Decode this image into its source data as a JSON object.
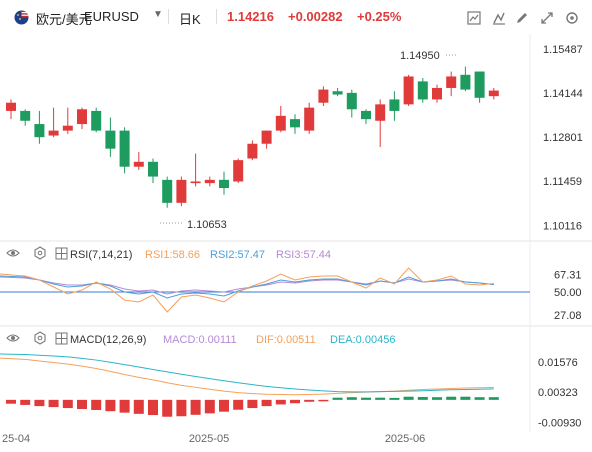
{
  "header": {
    "symbol_name": "欧元/美元",
    "symbol_code": "EURUSD",
    "timeframe": "日K",
    "price": "1.14216",
    "change": "+0.00282",
    "change_pct": "+0.25%",
    "icons": [
      "us-eu-flag-icon",
      "dropdown-caret-icon",
      "crosshair-icon",
      "indicator-icon",
      "draw-icon",
      "settings-icon",
      "fullscreen-icon",
      "close-icon"
    ]
  },
  "colors": {
    "up": "#e03a3a",
    "down": "#1e9b5f",
    "rsi1": "#f5a15a",
    "rsi2": "#4aa0d9",
    "rsi3": "#b48ad6",
    "macd_line": "#f5a15a",
    "dea_line": "#29b6c8",
    "ref_line": "#3a7bd5"
  },
  "chart_data": [
    {
      "type": "candlestick",
      "name": "EURUSD daily",
      "y_ticks": [
        "1.15487",
        "1.14144",
        "1.12801",
        "1.11459",
        "1.10116"
      ],
      "ylim": [
        1.0985,
        1.157
      ],
      "high_label": "1.14950",
      "low_label": "1.10653",
      "candles": [
        {
          "o": 1.136,
          "h": 1.1395,
          "l": 1.1335,
          "c": 1.1385
        },
        {
          "o": 1.136,
          "h": 1.1365,
          "l": 1.1315,
          "c": 1.133
        },
        {
          "o": 1.132,
          "h": 1.136,
          "l": 1.126,
          "c": 1.128
        },
        {
          "o": 1.1285,
          "h": 1.137,
          "l": 1.128,
          "c": 1.13
        },
        {
          "o": 1.13,
          "h": 1.137,
          "l": 1.129,
          "c": 1.1315
        },
        {
          "o": 1.132,
          "h": 1.137,
          "l": 1.1305,
          "c": 1.1365
        },
        {
          "o": 1.136,
          "h": 1.137,
          "l": 1.1295,
          "c": 1.13
        },
        {
          "o": 1.13,
          "h": 1.134,
          "l": 1.122,
          "c": 1.1245
        },
        {
          "o": 1.13,
          "h": 1.131,
          "l": 1.117,
          "c": 1.119
        },
        {
          "o": 1.119,
          "h": 1.1235,
          "l": 1.118,
          "c": 1.1205
        },
        {
          "o": 1.1205,
          "h": 1.1215,
          "l": 1.114,
          "c": 1.116
        },
        {
          "o": 1.115,
          "h": 1.116,
          "l": 1.1065,
          "c": 1.108
        },
        {
          "o": 1.108,
          "h": 1.116,
          "l": 1.107,
          "c": 1.115
        },
        {
          "o": 1.114,
          "h": 1.123,
          "l": 1.113,
          "c": 1.1145
        },
        {
          "o": 1.114,
          "h": 1.116,
          "l": 1.113,
          "c": 1.115
        },
        {
          "o": 1.115,
          "h": 1.1175,
          "l": 1.1105,
          "c": 1.1125
        },
        {
          "o": 1.1145,
          "h": 1.1215,
          "l": 1.114,
          "c": 1.121
        },
        {
          "o": 1.1215,
          "h": 1.127,
          "l": 1.121,
          "c": 1.126
        },
        {
          "o": 1.126,
          "h": 1.13,
          "l": 1.1245,
          "c": 1.13
        },
        {
          "o": 1.13,
          "h": 1.1375,
          "l": 1.1295,
          "c": 1.1345
        },
        {
          "o": 1.1335,
          "h": 1.135,
          "l": 1.129,
          "c": 1.131
        },
        {
          "o": 1.13,
          "h": 1.1385,
          "l": 1.129,
          "c": 1.137
        },
        {
          "o": 1.1385,
          "h": 1.1435,
          "l": 1.1375,
          "c": 1.1425
        },
        {
          "o": 1.142,
          "h": 1.143,
          "l": 1.1405,
          "c": 1.141
        },
        {
          "o": 1.1415,
          "h": 1.1425,
          "l": 1.134,
          "c": 1.1365
        },
        {
          "o": 1.136,
          "h": 1.1365,
          "l": 1.132,
          "c": 1.1335
        },
        {
          "o": 1.133,
          "h": 1.1395,
          "l": 1.125,
          "c": 1.138
        },
        {
          "o": 1.1395,
          "h": 1.142,
          "l": 1.133,
          "c": 1.136
        },
        {
          "o": 1.138,
          "h": 1.147,
          "l": 1.1375,
          "c": 1.1465
        },
        {
          "o": 1.145,
          "h": 1.146,
          "l": 1.1385,
          "c": 1.1395
        },
        {
          "o": 1.1395,
          "h": 1.144,
          "l": 1.1385,
          "c": 1.143
        },
        {
          "o": 1.143,
          "h": 1.148,
          "l": 1.1405,
          "c": 1.1465
        },
        {
          "o": 1.147,
          "h": 1.1495,
          "l": 1.142,
          "c": 1.1425
        },
        {
          "o": 1.148,
          "h": 1.148,
          "l": 1.1385,
          "c": 1.14
        },
        {
          "o": 1.1405,
          "h": 1.143,
          "l": 1.1395,
          "c": 1.1422
        }
      ]
    },
    {
      "type": "line",
      "name": "RSI",
      "label": "RSI(7,14,21)",
      "legend": [
        "RSI1:58.66",
        "RSI2:57.47",
        "RSI3:57.44"
      ],
      "y_ticks": [
        "67.31",
        "50.00",
        "27.08"
      ],
      "ylim": [
        20,
        80
      ],
      "ref_value": 50,
      "series": [
        {
          "name": "RSI1",
          "values": [
            68,
            66,
            62,
            55,
            48,
            52,
            60,
            53,
            42,
            40,
            47,
            30,
            45,
            47,
            44,
            40,
            50,
            56,
            61,
            68,
            62,
            65,
            66,
            66,
            60,
            54,
            64,
            58,
            74,
            60,
            62,
            66,
            58,
            57,
            58.66
          ]
        },
        {
          "name": "RSI2",
          "values": [
            66,
            65,
            62,
            58,
            55,
            56,
            59,
            56,
            50,
            48,
            50,
            44,
            48,
            49,
            48,
            46,
            51,
            55,
            58,
            62,
            60,
            62,
            63,
            63,
            60,
            57,
            61,
            59,
            65,
            60,
            61,
            63,
            60,
            59,
            57.47
          ]
        },
        {
          "name": "RSI3",
          "values": [
            65,
            64,
            62,
            59,
            57,
            57,
            59,
            57,
            53,
            51,
            52,
            48,
            51,
            52,
            51,
            50,
            53,
            55,
            57,
            60,
            59,
            61,
            62,
            62,
            60,
            58,
            61,
            59,
            63,
            60,
            61,
            62,
            60,
            59,
            57.44
          ]
        }
      ]
    },
    {
      "type": "bar",
      "name": "MACD",
      "label": "MACD(12,26,9)",
      "legend": [
        "MACD:0.00111",
        "DIF:0.00511",
        "DEA:0.00456"
      ],
      "y_ticks": [
        "0.01576",
        "0.00323",
        "-0.00930"
      ],
      "ylim": [
        -0.0125,
        0.0215
      ],
      "x_ticks": [
        "25-04",
        "2025-05",
        "2025-06"
      ],
      "series": [
        {
          "name": "MACD",
          "values": [
            -0.0016,
            -0.0021,
            -0.0026,
            -0.003,
            -0.0034,
            -0.0038,
            -0.0042,
            -0.0047,
            -0.0053,
            -0.0058,
            -0.0063,
            -0.007,
            -0.0068,
            -0.0062,
            -0.0056,
            -0.0049,
            -0.0041,
            -0.0034,
            -0.0026,
            -0.0019,
            -0.0014,
            -0.0008,
            -0.0002,
            0.0009,
            0.0011,
            0.0009,
            0.0009,
            0.0008,
            0.0013,
            0.0012,
            0.0011,
            0.0013,
            0.0013,
            0.0011,
            0.00111
          ]
        },
        {
          "name": "DIF",
          "values": [
            0.0173,
            0.0168,
            0.0161,
            0.0155,
            0.0148,
            0.014,
            0.013,
            0.0118,
            0.0105,
            0.0093,
            0.0083,
            0.0071,
            0.006,
            0.0052,
            0.0044,
            0.0036,
            0.003,
            0.0026,
            0.0023,
            0.0022,
            0.0021,
            0.0022,
            0.0024,
            0.0027,
            0.003,
            0.0032,
            0.0034,
            0.0036,
            0.004,
            0.0043,
            0.0045,
            0.0047,
            0.0049,
            0.005,
            0.00511
          ]
        },
        {
          "name": "DEA",
          "values": [
            0.019,
            0.0188,
            0.0185,
            0.0182,
            0.0178,
            0.0172,
            0.0165,
            0.0156,
            0.0146,
            0.0136,
            0.0126,
            0.0116,
            0.0106,
            0.0097,
            0.0088,
            0.0079,
            0.0071,
            0.0063,
            0.0056,
            0.005,
            0.0045,
            0.0041,
            0.0037,
            0.0034,
            0.0033,
            0.0033,
            0.0034,
            0.0035,
            0.0036,
            0.0038,
            0.004,
            0.0042,
            0.0043,
            0.0044,
            0.00456
          ]
        }
      ]
    }
  ]
}
